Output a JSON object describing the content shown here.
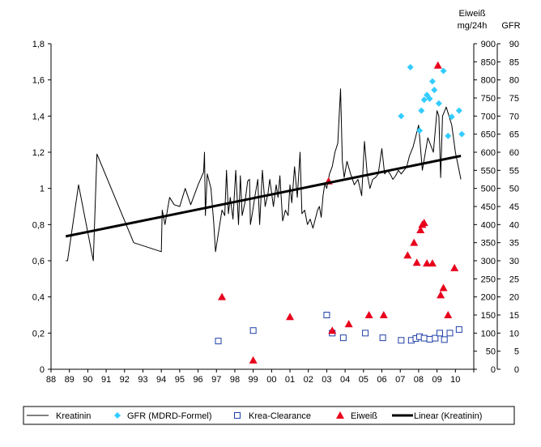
{
  "chart_data": {
    "type": "line",
    "title": "",
    "x_axis": {
      "ticks": [
        "88",
        "89",
        "90",
        "91",
        "92",
        "93",
        "94",
        "95",
        "96",
        "97",
        "98",
        "99",
        "00",
        "01",
        "02",
        "03",
        "04",
        "05",
        "06",
        "07",
        "08",
        "09",
        "10"
      ],
      "range": [
        1988,
        2011
      ]
    },
    "y_left": {
      "range": [
        0,
        1.8
      ],
      "ticks": [
        "0",
        "0,2",
        "0,4",
        "0,6",
        "0,8",
        "1",
        "1,2",
        "1,4",
        "1,6",
        "1,8"
      ]
    },
    "y_eiweiss": {
      "title_line1": "Eiweiß",
      "title_line2": "mg/24h",
      "range": [
        0,
        900
      ],
      "ticks": [
        "0",
        "50",
        "100",
        "150",
        "200",
        "250",
        "300",
        "350",
        "400",
        "450",
        "500",
        "550",
        "600",
        "650",
        "700",
        "750",
        "800",
        "850",
        "900"
      ]
    },
    "y_gfr": {
      "title": "GFR",
      "range": [
        0,
        90
      ],
      "ticks": [
        "0",
        "5",
        "10",
        "15",
        "20",
        "25",
        "30",
        "35",
        "40",
        "45",
        "50",
        "55",
        "60",
        "65",
        "70",
        "75",
        "80",
        "85",
        "90"
      ]
    },
    "grid": false,
    "legend_position": "bottom",
    "legend": [
      "Kreatinin",
      "GFR (MDRD-Formel)",
      "Krea-Clearance",
      "Eiweiß",
      "Linear (Kreatinin)"
    ],
    "series": [
      {
        "name": "Kreatinin",
        "axis": "left",
        "style": "line",
        "color": "#000000",
        "points": [
          [
            1988.8,
            0.6
          ],
          [
            1988.9,
            0.6
          ],
          [
            1989.5,
            1.02
          ],
          [
            1990.3,
            0.6
          ],
          [
            1990.5,
            1.19
          ],
          [
            1992.5,
            0.7
          ],
          [
            1994.0,
            0.65
          ],
          [
            1994.05,
            0.88
          ],
          [
            1994.2,
            0.8
          ],
          [
            1994.45,
            0.95
          ],
          [
            1994.7,
            0.91
          ],
          [
            1995.0,
            0.9
          ],
          [
            1995.3,
            1.0
          ],
          [
            1995.6,
            0.91
          ],
          [
            1996.0,
            1.02
          ],
          [
            1996.3,
            1.09
          ],
          [
            1996.35,
            1.2
          ],
          [
            1996.4,
            0.85
          ],
          [
            1996.5,
            1.08
          ],
          [
            1996.7,
            1.0
          ],
          [
            1996.85,
            0.81
          ],
          [
            1996.95,
            0.65
          ],
          [
            1997.3,
            0.88
          ],
          [
            1997.45,
            0.85
          ],
          [
            1997.55,
            1.1
          ],
          [
            1997.65,
            0.86
          ],
          [
            1997.75,
            0.95
          ],
          [
            1997.9,
            0.83
          ],
          [
            1998.05,
            1.1
          ],
          [
            1998.2,
            0.8
          ],
          [
            1998.3,
            1.07
          ],
          [
            1998.4,
            0.85
          ],
          [
            1998.55,
            0.92
          ],
          [
            1998.7,
            1.04
          ],
          [
            1998.8,
            1.05
          ],
          [
            1998.85,
            0.8
          ],
          [
            1998.95,
            0.86
          ],
          [
            1999.1,
            0.96
          ],
          [
            1999.25,
            1.05
          ],
          [
            1999.35,
            0.8
          ],
          [
            1999.5,
            1.1
          ],
          [
            1999.65,
            0.9
          ],
          [
            1999.8,
            0.97
          ],
          [
            1999.9,
            1.05
          ],
          [
            2000.1,
            0.9
          ],
          [
            2000.25,
            1.02
          ],
          [
            2000.35,
            0.95
          ],
          [
            2000.45,
            1.07
          ],
          [
            2000.6,
            0.82
          ],
          [
            2000.75,
            0.88
          ],
          [
            2000.9,
            0.85
          ],
          [
            2001.0,
            1.02
          ],
          [
            2001.1,
            0.92
          ],
          [
            2001.25,
            1.12
          ],
          [
            2001.4,
            0.95
          ],
          [
            2001.55,
            1.2
          ],
          [
            2001.65,
            0.86
          ],
          [
            2001.8,
            0.88
          ],
          [
            2001.95,
            0.8
          ],
          [
            2002.1,
            0.83
          ],
          [
            2002.25,
            0.78
          ],
          [
            2002.35,
            0.82
          ],
          [
            2002.5,
            0.88
          ],
          [
            2002.6,
            0.9
          ],
          [
            2002.7,
            0.84
          ],
          [
            2002.8,
            0.96
          ],
          [
            2002.9,
            1.03
          ],
          [
            2003.0,
            1.0
          ],
          [
            2003.15,
            1.08
          ],
          [
            2003.3,
            1.12
          ],
          [
            2003.45,
            1.2
          ],
          [
            2003.6,
            1.25
          ],
          [
            2003.75,
            1.55
          ],
          [
            2003.85,
            1.15
          ],
          [
            2003.95,
            1.06
          ],
          [
            2004.1,
            1.15
          ],
          [
            2004.3,
            1.08
          ],
          [
            2004.5,
            1.02
          ],
          [
            2004.7,
            1.05
          ],
          [
            2004.9,
            0.96
          ],
          [
            2005.05,
            1.26
          ],
          [
            2005.2,
            1.08
          ],
          [
            2005.35,
            1.0
          ],
          [
            2005.5,
            1.05
          ],
          [
            2005.65,
            1.06
          ],
          [
            2005.8,
            1.08
          ],
          [
            2006.0,
            1.22
          ],
          [
            2006.15,
            1.08
          ],
          [
            2006.3,
            1.1
          ],
          [
            2006.45,
            1.08
          ],
          [
            2006.6,
            1.05
          ],
          [
            2006.75,
            1.07
          ],
          [
            2006.9,
            1.1
          ],
          [
            2007.05,
            1.08
          ],
          [
            2007.2,
            1.1
          ],
          [
            2007.35,
            1.12
          ],
          [
            2007.5,
            1.18
          ],
          [
            2007.7,
            1.23
          ],
          [
            2008.0,
            1.35
          ],
          [
            2008.2,
            1.1
          ],
          [
            2008.5,
            1.28
          ],
          [
            2008.8,
            1.2
          ],
          [
            2009.0,
            1.43
          ],
          [
            2009.1,
            1.4
          ],
          [
            2009.2,
            1.06
          ],
          [
            2009.3,
            1.4
          ],
          [
            2009.5,
            1.45
          ],
          [
            2009.8,
            1.35
          ],
          [
            2010.0,
            1.2
          ],
          [
            2010.3,
            1.05
          ]
        ]
      },
      {
        "name": "GFR (MDRD-Formel)",
        "axis": "gfr",
        "style": "diamond",
        "color": "#33ccff",
        "points": [
          [
            2007.05,
            70.0
          ],
          [
            2007.55,
            83.5
          ],
          [
            2008.05,
            66.0
          ],
          [
            2008.15,
            71.5
          ],
          [
            2008.3,
            74.5
          ],
          [
            2008.45,
            75.8
          ],
          [
            2008.6,
            74.8
          ],
          [
            2008.75,
            79.6
          ],
          [
            2008.85,
            77.2
          ],
          [
            2009.1,
            73.5
          ],
          [
            2009.35,
            82.5
          ],
          [
            2009.6,
            64.5
          ],
          [
            2009.8,
            69.8
          ],
          [
            2010.2,
            71.5
          ],
          [
            2010.35,
            65.0
          ]
        ]
      },
      {
        "name": "Krea-Clearance",
        "axis": "gfr",
        "style": "square",
        "color": "#1f3fa8",
        "points": [
          [
            1997.1,
            7.8
          ],
          [
            1999.0,
            10.7
          ],
          [
            2003.0,
            15.0
          ],
          [
            2003.3,
            10.0
          ],
          [
            2003.9,
            8.7
          ],
          [
            2005.1,
            10.0
          ],
          [
            2006.05,
            8.7
          ],
          [
            2007.05,
            8.0
          ],
          [
            2007.6,
            8.0
          ],
          [
            2007.85,
            8.5
          ],
          [
            2008.05,
            9.0
          ],
          [
            2008.3,
            8.6
          ],
          [
            2008.6,
            8.3
          ],
          [
            2008.9,
            8.6
          ],
          [
            2009.15,
            10.0
          ],
          [
            2009.4,
            8.2
          ],
          [
            2009.7,
            10.0
          ],
          [
            2010.2,
            11.0
          ]
        ]
      },
      {
        "name": "Eiweiß",
        "axis": "eiweiss",
        "style": "triangle",
        "color": "#e8001c",
        "points": [
          [
            1997.3,
            200
          ],
          [
            1999.0,
            25
          ],
          [
            2001.0,
            145
          ],
          [
            2003.1,
            520
          ],
          [
            2003.3,
            107
          ],
          [
            2004.2,
            125
          ],
          [
            2005.3,
            150
          ],
          [
            2006.1,
            150
          ],
          [
            2007.4,
            315
          ],
          [
            2007.75,
            350
          ],
          [
            2007.9,
            295
          ],
          [
            2008.1,
            385
          ],
          [
            2008.2,
            400
          ],
          [
            2008.3,
            405
          ],
          [
            2008.45,
            293
          ],
          [
            2008.75,
            293
          ],
          [
            2009.05,
            840
          ],
          [
            2009.2,
            205
          ],
          [
            2009.35,
            225
          ],
          [
            2009.6,
            150
          ],
          [
            2009.95,
            280
          ]
        ]
      },
      {
        "name": "Linear (Kreatinin)",
        "axis": "left",
        "style": "thick-line",
        "color": "#000000",
        "points": [
          [
            1988.8,
            0.735
          ],
          [
            2010.3,
            1.18
          ]
        ]
      }
    ]
  }
}
